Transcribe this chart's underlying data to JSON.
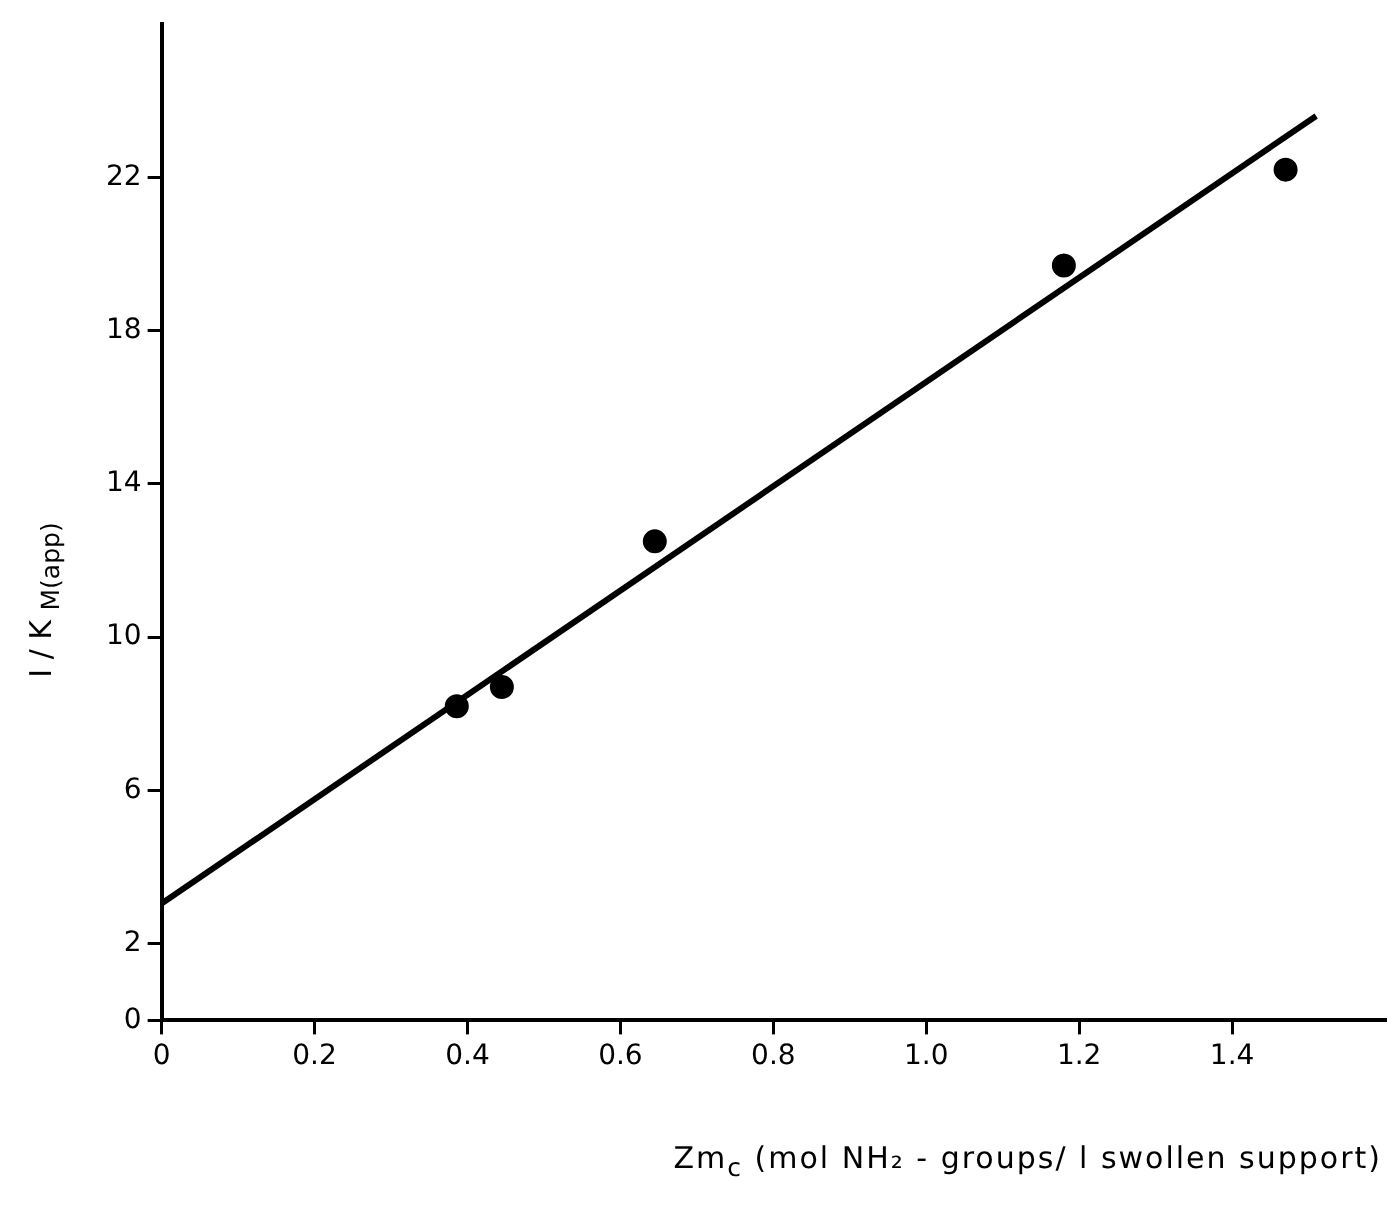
{
  "chart_data": {
    "type": "scatter",
    "xlabel": "Zm$_{c}$  (mol  NH₂ - groups/ l  swollen  support)",
    "ylabel": "I / K $_{M(app)}$",
    "xlim": [
      0,
      1.6
    ],
    "xticks": [
      0,
      0.2,
      0.4,
      0.6,
      0.8,
      {
        "value": 1,
        "label": "1.0"
      },
      1.2,
      1.4
    ],
    "ylim": [
      0,
      26
    ],
    "yticks": [
      0,
      2,
      6,
      10,
      14,
      18,
      22
    ],
    "grid": false,
    "legend": false,
    "series": [
      {
        "color": "#000000",
        "marker": "circle",
        "x": [
          0.386,
          0.445,
          0.645,
          1.18,
          1.47
        ],
        "values": [
          8.2,
          8.7,
          12.5,
          19.7,
          22.2
        ]
      },
      {
        "type": "line",
        "color": "#000000",
        "marker": "none",
        "line_style": "solid",
        "x": [
          0,
          1.51
        ],
        "values": [
          3.05,
          23.6
        ]
      }
    ]
  }
}
